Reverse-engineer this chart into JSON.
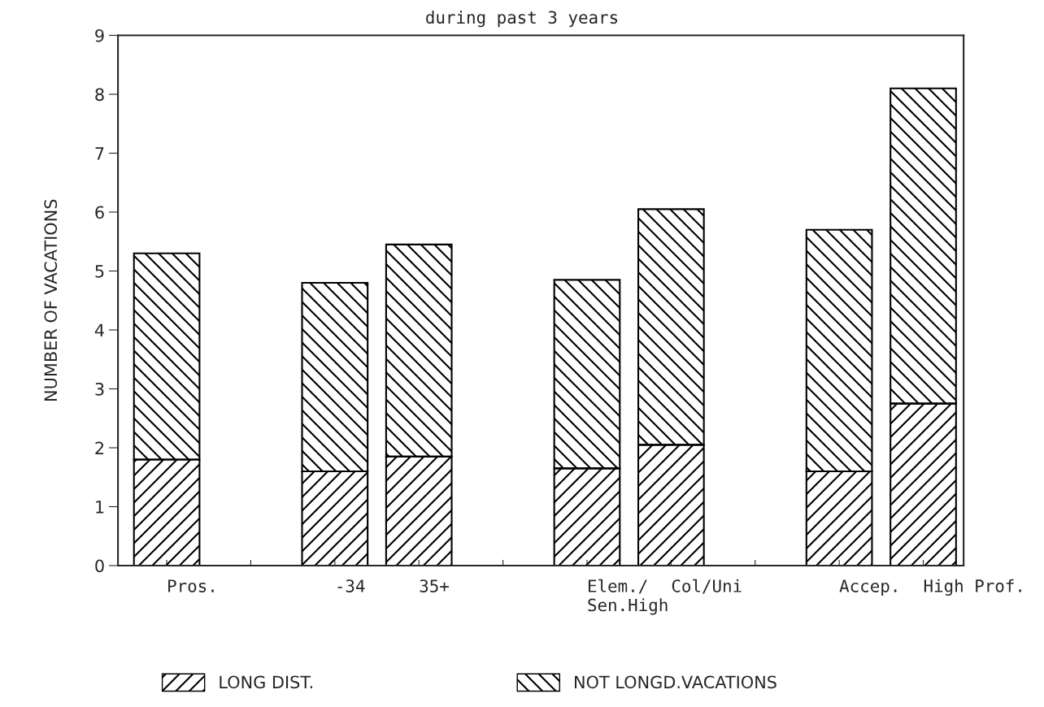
{
  "chart_data": {
    "type": "bar",
    "title": "during past 3 years",
    "ylabel": "NUMBER OF VACATIONS",
    "categories": [
      "Pros.",
      null,
      "-34",
      "35+",
      null,
      "Elem./\nSen.High",
      "Col/Uni",
      null,
      "Accep.",
      "High Prof."
    ],
    "stacked": true,
    "series": [
      {
        "name": "LONG DIST.",
        "color": "#000000",
        "values": [
          1.8,
          null,
          1.6,
          1.85,
          null,
          1.65,
          2.05,
          null,
          1.6,
          2.75
        ]
      },
      {
        "name": "NOT LONGD.VACATIONS",
        "color": "#000000",
        "values": [
          3.5,
          null,
          3.2,
          3.6,
          null,
          3.2,
          4.0,
          null,
          4.1,
          5.35
        ]
      }
    ],
    "ylim": [
      0,
      9
    ],
    "yticks": [
      0,
      1,
      2,
      3,
      4,
      5,
      6,
      7,
      8,
      9
    ],
    "grid": false,
    "legend": "bottom"
  }
}
